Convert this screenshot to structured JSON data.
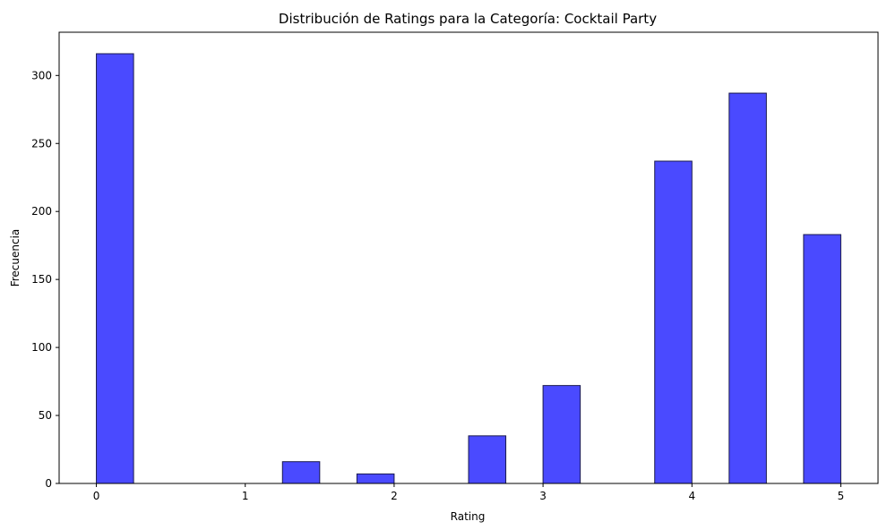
{
  "chart_data": {
    "type": "bar",
    "title": "Distribución de Ratings para la Categoría: Cocktail Party",
    "xlabel": "Rating",
    "ylabel": "Frecuencia",
    "xlim": [
      -0.25,
      5.25
    ],
    "ylim": [
      0,
      331.8
    ],
    "xticks": [
      0,
      1,
      2,
      3,
      4,
      5
    ],
    "yticks": [
      0,
      50,
      100,
      150,
      200,
      250,
      300
    ],
    "bin_width": 0.25,
    "bins": [
      {
        "start": 0.0,
        "end": 0.25,
        "count": 316
      },
      {
        "start": 1.25,
        "end": 1.5,
        "count": 16
      },
      {
        "start": 1.75,
        "end": 2.0,
        "count": 7
      },
      {
        "start": 2.5,
        "end": 2.75,
        "count": 35
      },
      {
        "start": 3.0,
        "end": 3.25,
        "count": 72
      },
      {
        "start": 3.75,
        "end": 4.0,
        "count": 237
      },
      {
        "start": 4.25,
        "end": 4.5,
        "count": 287
      },
      {
        "start": 4.75,
        "end": 5.0,
        "count": 183
      }
    ],
    "bar_color": "#4a4aff",
    "bar_edge_color": "#1a1a4d",
    "grid": false,
    "legend": "none"
  }
}
